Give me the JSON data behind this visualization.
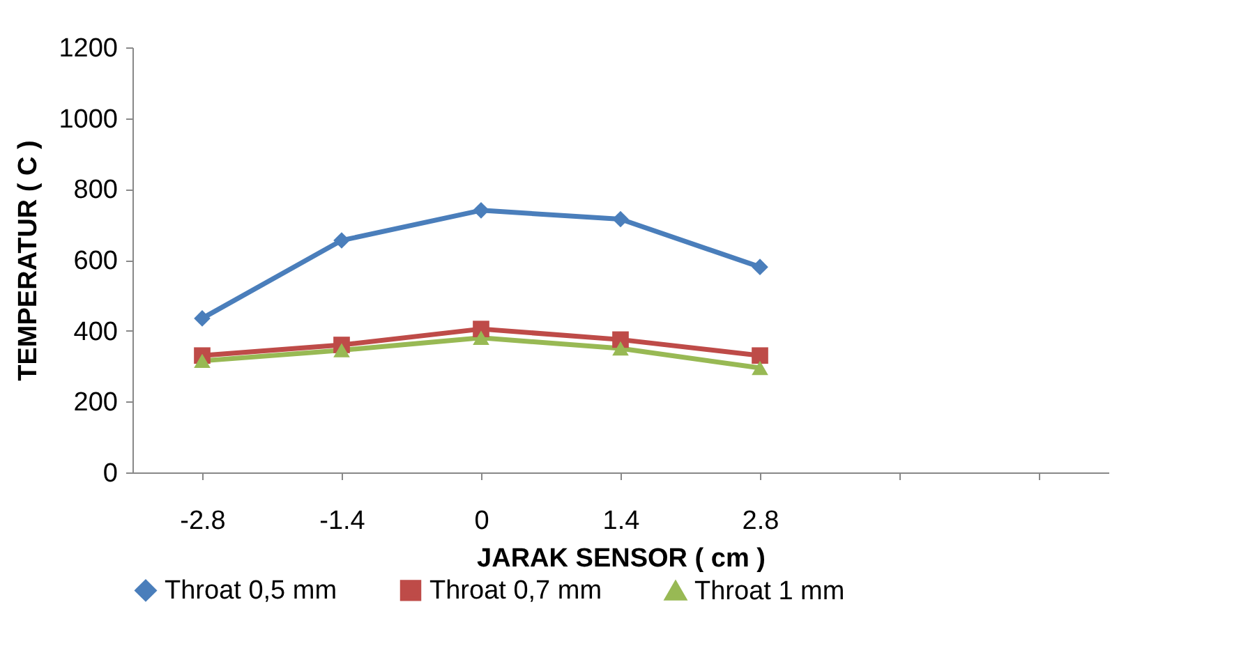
{
  "chart_data": {
    "type": "line",
    "xlabel": "JARAK SENSOR ( cm )",
    "ylabel": "TEMPERATUR ( C )",
    "categories": [
      "-2.8",
      "-1.4",
      "0",
      "1.4",
      "2.8",
      null,
      null
    ],
    "series": [
      {
        "name": "Throat 0,5 mm",
        "color": "#4a7ebb",
        "marker": "diamond",
        "values": [
          435,
          655,
          740,
          715,
          580,
          null,
          null
        ]
      },
      {
        "name": "Throat 0,7 mm",
        "color": "#be4b48",
        "marker": "square",
        "values": [
          330,
          360,
          405,
          375,
          330,
          null,
          null
        ]
      },
      {
        "name": "Throat 1 mm",
        "color": "#98b954",
        "marker": "triangle",
        "values": [
          315,
          345,
          380,
          350,
          295,
          null,
          null
        ]
      }
    ],
    "ylim": [
      0,
      1200
    ],
    "yticks": [
      0,
      200,
      400,
      600,
      800,
      1000,
      1200
    ],
    "grid": false,
    "legend": "bottom"
  }
}
